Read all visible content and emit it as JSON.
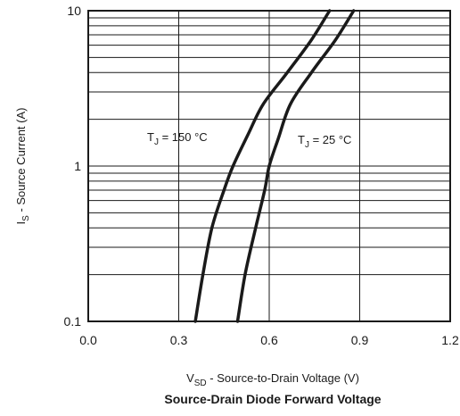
{
  "chart_data": {
    "type": "line",
    "title": "Source-Drain Diode Forward Voltage",
    "xlabel": {
      "main": "V",
      "sub": "SD",
      "rest": " - Source-to-Drain Voltage (V)"
    },
    "ylabel": {
      "main": "I",
      "sub": "S",
      "rest": " - Source Current (A)"
    },
    "xlim": [
      0,
      1.2
    ],
    "ylim": [
      0.1,
      10
    ],
    "yscale": "log",
    "grid": true,
    "x_ticks": [
      0.0,
      0.3,
      0.6,
      0.9,
      1.2
    ],
    "x_tick_labels": [
      "0.0",
      "0.3",
      "0.6",
      "0.9",
      "1.2"
    ],
    "y_ticks": [
      0.1,
      1,
      10
    ],
    "y_tick_labels": [
      "0.1",
      "1",
      "10"
    ],
    "series": [
      {
        "name": "T_J = 150 °C",
        "label_main": "T",
        "label_sub": "J",
        "label_rest": " = 150 °C",
        "points": [
          [
            0.355,
            0.1
          ],
          [
            0.38,
            0.2
          ],
          [
            0.41,
            0.4
          ],
          [
            0.45,
            0.7
          ],
          [
            0.48,
            1.0
          ],
          [
            0.53,
            1.6
          ],
          [
            0.58,
            2.5
          ],
          [
            0.66,
            4.0
          ],
          [
            0.74,
            6.5
          ],
          [
            0.8,
            10.0
          ]
        ]
      },
      {
        "name": "T_J = 25 °C",
        "label_main": "T",
        "label_sub": "J",
        "label_rest": " = 25 °C",
        "points": [
          [
            0.495,
            0.1
          ],
          [
            0.52,
            0.2
          ],
          [
            0.555,
            0.4
          ],
          [
            0.585,
            0.7
          ],
          [
            0.6,
            1.0
          ],
          [
            0.63,
            1.5
          ],
          [
            0.67,
            2.5
          ],
          [
            0.74,
            4.0
          ],
          [
            0.82,
            6.5
          ],
          [
            0.88,
            10.0
          ]
        ]
      }
    ]
  }
}
